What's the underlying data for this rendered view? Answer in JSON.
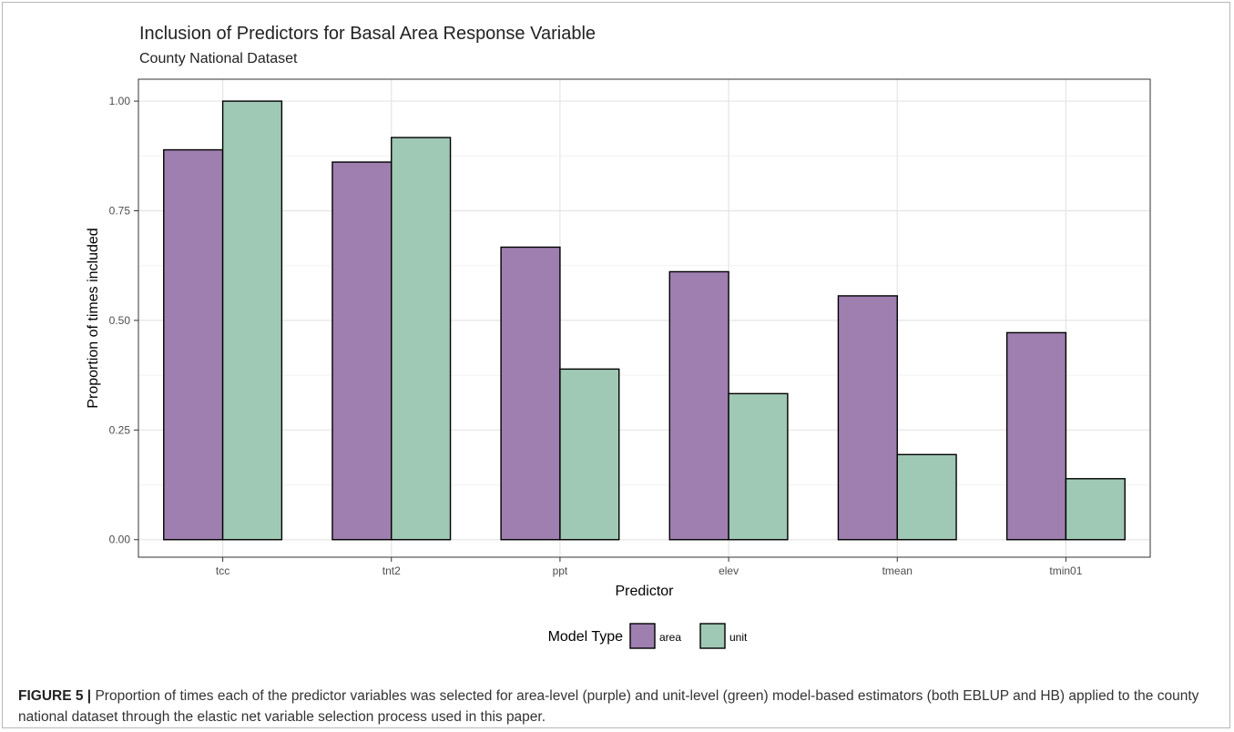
{
  "title": "Inclusion of Predictors for Basal Area Response Variable",
  "subtitle": "County National Dataset",
  "caption": {
    "label": "FIGURE 5 |",
    "text": " Proportion of times each of the predictor variables was selected for area-level (purple) and unit-level (green) model-based estimators (both EBLUP and HB) applied to the county national dataset through the elastic net variable selection process used in this paper."
  },
  "chart_data": {
    "type": "bar",
    "title": "Inclusion of Predictors for Basal Area Response Variable",
    "subtitle": "County National Dataset",
    "xlabel": "Predictor",
    "ylabel": "Proportion of times included",
    "categories": [
      "tcc",
      "tnt2",
      "ppt",
      "elev",
      "tmean",
      "tmin01"
    ],
    "series": [
      {
        "name": "area",
        "color": "#9e7fb0",
        "values": [
          0.889,
          0.861,
          0.667,
          0.611,
          0.556,
          0.472
        ]
      },
      {
        "name": "unit",
        "color": "#9fc8b5",
        "values": [
          1.0,
          0.917,
          0.389,
          0.333,
          0.194,
          0.139
        ]
      }
    ],
    "ylim": [
      -0.04,
      1.05
    ],
    "yticks": [
      0,
      0.25,
      0.5,
      0.75,
      1.0
    ],
    "ytick_labels": [
      "0.00",
      "0.25",
      "0.50",
      "0.75",
      "1.00"
    ],
    "grid": true,
    "legend": {
      "title": "Model Type",
      "position": "bottom"
    }
  }
}
